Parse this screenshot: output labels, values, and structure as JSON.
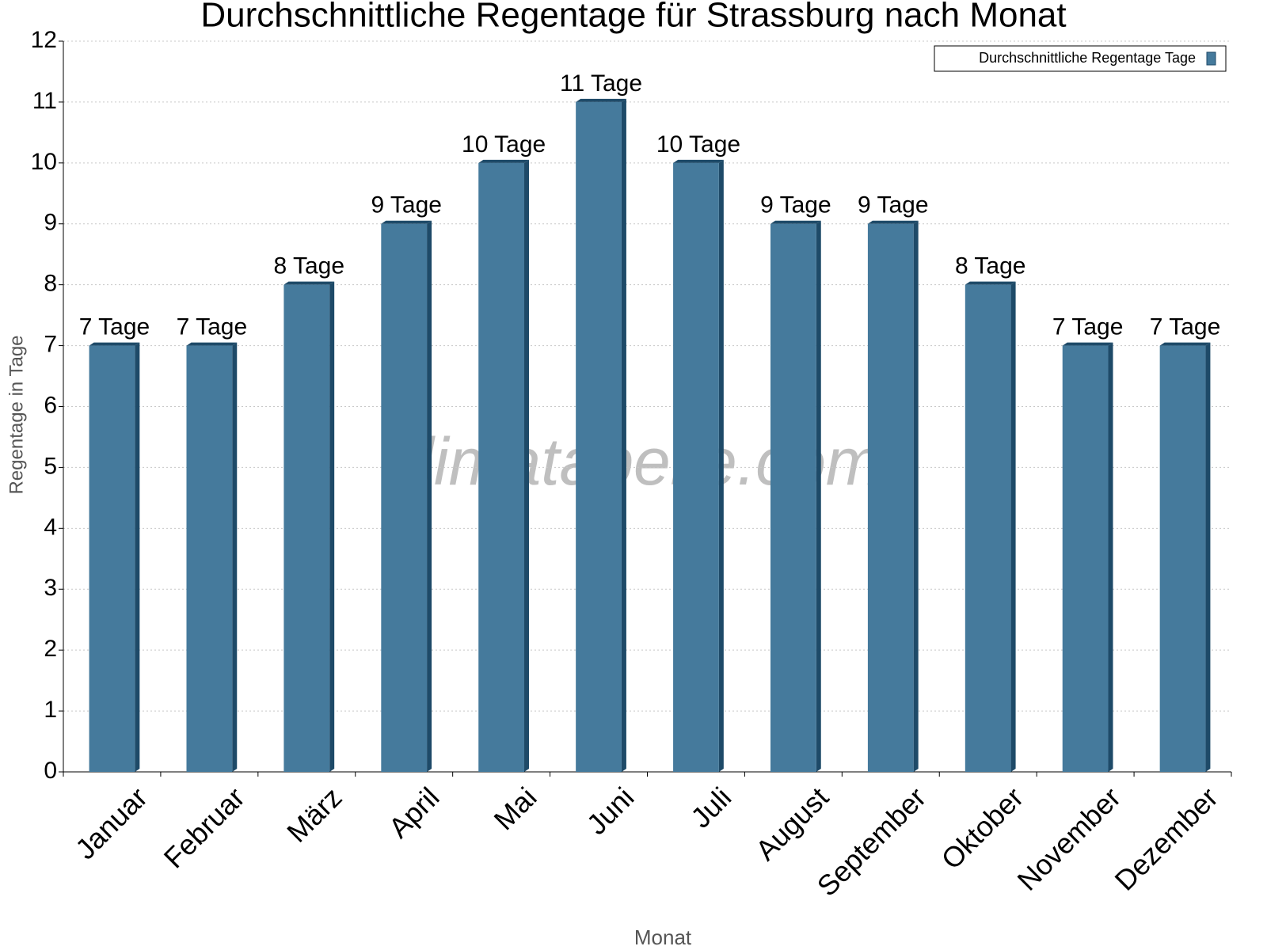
{
  "chart_data": {
    "type": "bar",
    "title": "Durchschnittliche Regentage für Strassburg nach Monat",
    "x_label": "Monat",
    "y_label": "Regentage in Tage",
    "watermark": "klimatabelle.com",
    "categories": [
      "Januar",
      "Februar",
      "März",
      "April",
      "Mai",
      "Juni",
      "Juli",
      "August",
      "September",
      "Oktober",
      "November",
      "Dezember"
    ],
    "series": [
      {
        "name": "Durchschnittliche Regentage Tage",
        "color": "#457a9c",
        "values": [
          7,
          7,
          8,
          9,
          10,
          11,
          10,
          9,
          9,
          8,
          7,
          7
        ],
        "value_labels": [
          "7 Tage",
          "7 Tage",
          "8 Tage",
          "9 Tage",
          "10 Tage",
          "11 Tage",
          "10 Tage",
          "9 Tage",
          "9 Tage",
          "8 Tage",
          "7 Tage",
          "7 Tage"
        ]
      }
    ],
    "ylim": [
      0,
      12
    ],
    "yticks": [
      0,
      1,
      2,
      3,
      4,
      5,
      6,
      7,
      8,
      9,
      10,
      11,
      12
    ],
    "grid": true,
    "legend": "top-right"
  }
}
